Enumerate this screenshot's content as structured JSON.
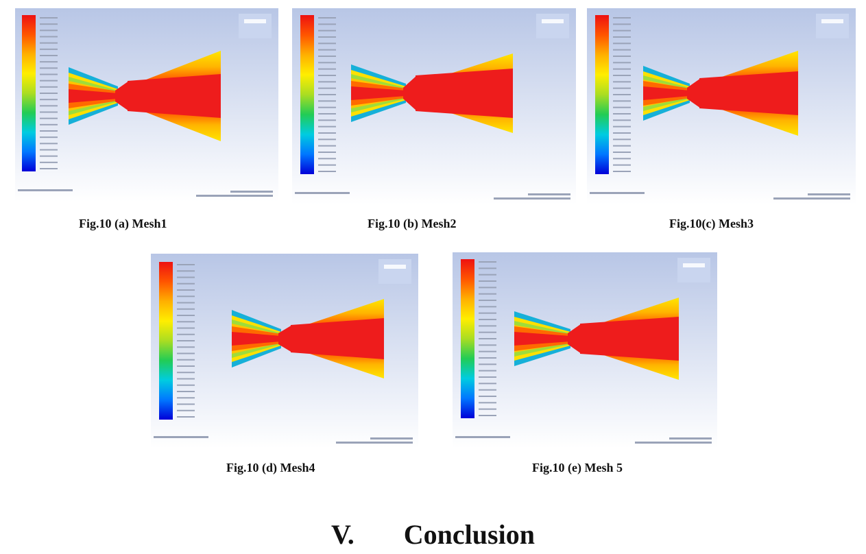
{
  "figures": [
    {
      "caption": "Fig.10 (a) Mesh1"
    },
    {
      "caption": "Fig.10 (b) Mesh2"
    },
    {
      "caption": "Fig.10(c) Mesh3"
    },
    {
      "caption": "Fig.10 (d) Mesh4"
    },
    {
      "caption": "Fig.10 (e) Mesh 5"
    }
  ],
  "section": {
    "number": "V.",
    "title": "Conclusion"
  },
  "colors": {
    "background_top": "#b8c6e6",
    "background_bottom": "#ffffff",
    "core": "#ee1c1c",
    "ramp": [
      "#0000d8",
      "#0077ff",
      "#00cce0",
      "#22cc55",
      "#aadd22",
      "#ffee00",
      "#ffb000",
      "#ff5500",
      "#ee1111"
    ]
  }
}
